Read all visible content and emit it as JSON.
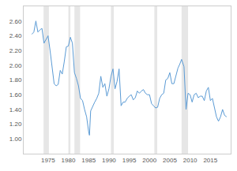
{
  "chart_data": {
    "type": "line",
    "color": "#5b9bd5",
    "grid": false,
    "x": [
      1971,
      1971.5,
      1972,
      1972.5,
      1973,
      1973.5,
      1974,
      1974.5,
      1975,
      1975.5,
      1976,
      1976.5,
      1977,
      1977.5,
      1978,
      1978.5,
      1979,
      1979.5,
      1980,
      1980.5,
      1981,
      1981.5,
      1982,
      1982.5,
      1983,
      1983.5,
      1984,
      1984.5,
      1985,
      1985.2,
      1985.5,
      1986,
      1986.5,
      1987,
      1987.5,
      1988,
      1988.5,
      1989,
      1989.5,
      1990,
      1990.5,
      1991,
      1991.5,
      1992,
      1992.5,
      1993,
      1993.5,
      1994,
      1994.5,
      1995,
      1995.5,
      1996,
      1996.5,
      1997,
      1997.5,
      1998,
      1998.5,
      1999,
      1999.5,
      2000,
      2000.5,
      2001,
      2001.5,
      2002,
      2002.5,
      2003,
      2003.5,
      2004,
      2004.5,
      2005,
      2005.5,
      2006,
      2006.5,
      2007,
      2007.5,
      2007.9,
      2008.5,
      2008.9,
      2009,
      2009.5,
      2010,
      2010.5,
      2011,
      2011.5,
      2012,
      2012.5,
      2013,
      2013.5,
      2014,
      2014.5,
      2015,
      2015.5,
      2016,
      2016.5,
      2017,
      2017.5,
      2018,
      2018.5,
      2019
    ],
    "values": [
      2.42,
      2.45,
      2.6,
      2.45,
      2.48,
      2.5,
      2.3,
      2.35,
      2.4,
      2.2,
      2.0,
      1.75,
      1.72,
      1.74,
      1.93,
      1.88,
      2.05,
      2.25,
      2.26,
      2.38,
      2.3,
      1.9,
      1.82,
      1.72,
      1.55,
      1.52,
      1.4,
      1.3,
      1.1,
      1.05,
      1.38,
      1.45,
      1.5,
      1.55,
      1.62,
      1.85,
      1.7,
      1.75,
      1.58,
      1.68,
      1.85,
      1.95,
      1.68,
      1.78,
      1.95,
      1.45,
      1.5,
      1.5,
      1.55,
      1.58,
      1.6,
      1.53,
      1.56,
      1.65,
      1.62,
      1.65,
      1.67,
      1.62,
      1.6,
      1.6,
      1.48,
      1.45,
      1.42,
      1.43,
      1.55,
      1.6,
      1.62,
      1.8,
      1.82,
      1.9,
      1.75,
      1.75,
      1.85,
      1.96,
      2.02,
      2.08,
      1.98,
      1.5,
      1.4,
      1.62,
      1.6,
      1.5,
      1.6,
      1.62,
      1.56,
      1.58,
      1.58,
      1.52,
      1.65,
      1.7,
      1.52,
      1.55,
      1.43,
      1.3,
      1.24,
      1.3,
      1.4,
      1.32,
      1.3
    ],
    "shaded_periods": [
      [
        1973.9,
        1975.2
      ],
      [
        1980.0,
        1980.5
      ],
      [
        1981.5,
        1982.9
      ],
      [
        1990.5,
        1991.2
      ],
      [
        2001.2,
        2001.9
      ],
      [
        2007.9,
        2009.5
      ]
    ],
    "xlim": [
      1969,
      2020
    ],
    "xticks": [
      1975,
      1980,
      1985,
      1990,
      1995,
      2000,
      2005,
      2010,
      2015
    ],
    "ylim": [
      0.8,
      2.8
    ],
    "yticks": [
      {
        "value": 1,
        "label": "1.00"
      },
      {
        "value": 1.2,
        "label": "1.20"
      },
      {
        "value": 1.4,
        "label": "1.40"
      },
      {
        "value": 1.6,
        "label": "1.60"
      },
      {
        "value": 1.8,
        "label": "1.80"
      },
      {
        "value": 2,
        "label": "2.00"
      },
      {
        "value": 2.2,
        "label": "2.20"
      },
      {
        "value": 2.4,
        "label": "2.40"
      },
      {
        "value": 2.6,
        "label": "2.60"
      }
    ]
  }
}
